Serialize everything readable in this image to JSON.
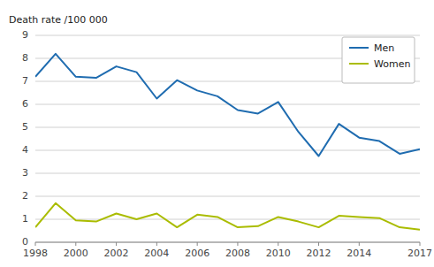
{
  "chart_data": {
    "type": "line",
    "ylabel": "Death rate /100 000",
    "x": [
      1998,
      1999,
      2000,
      2001,
      2002,
      2003,
      2004,
      2005,
      2006,
      2007,
      2008,
      2009,
      2010,
      2011,
      2012,
      2013,
      2014,
      2015,
      2016,
      2017
    ],
    "series": [
      {
        "name": "Men",
        "color": "#1F6CB0",
        "values": [
          7.2,
          8.2,
          7.2,
          7.15,
          7.65,
          7.4,
          6.25,
          7.05,
          6.6,
          6.35,
          5.75,
          5.6,
          6.1,
          4.8,
          3.75,
          5.15,
          4.55,
          4.4,
          3.85,
          4.05
        ]
      },
      {
        "name": "Women",
        "color": "#AABC00",
        "values": [
          0.65,
          1.7,
          0.95,
          0.9,
          1.25,
          1.0,
          1.25,
          0.65,
          1.2,
          1.1,
          0.65,
          0.7,
          1.1,
          0.9,
          0.65,
          1.15,
          1.1,
          1.05,
          0.65,
          0.55
        ]
      }
    ],
    "xlim": [
      1998,
      2017
    ],
    "xticks": [
      1998,
      2000,
      2002,
      2004,
      2006,
      2008,
      2010,
      2012,
      2014,
      2017
    ],
    "ylim": [
      0,
      9
    ],
    "yticks": [
      0,
      1,
      2,
      3,
      4,
      5,
      6,
      7,
      8,
      9
    ],
    "grid": true,
    "legend": "upper right"
  }
}
